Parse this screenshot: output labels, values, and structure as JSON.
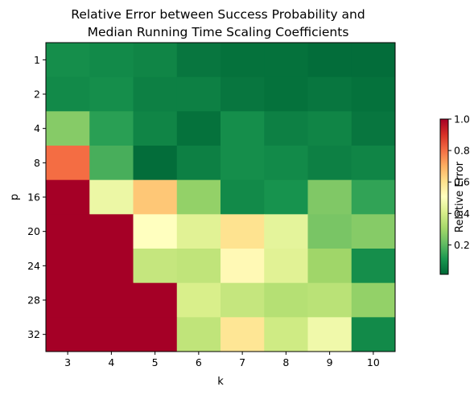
{
  "chart_data": {
    "type": "heatmap",
    "title_lines": [
      "Relative Error between Success Probability and",
      "Median Running Time Scaling Coefficients"
    ],
    "xlabel": "k",
    "ylabel": "p",
    "x": [
      "3",
      "4",
      "5",
      "6",
      "7",
      "8",
      "9",
      "10"
    ],
    "y": [
      "1",
      "2",
      "4",
      "8",
      "16",
      "20",
      "24",
      "28",
      "32"
    ],
    "values": [
      [
        0.08,
        0.07,
        0.06,
        0.03,
        0.02,
        0.02,
        0.01,
        0.01
      ],
      [
        0.07,
        0.08,
        0.05,
        0.05,
        0.03,
        0.02,
        0.03,
        0.02
      ],
      [
        0.25,
        0.12,
        0.06,
        0.02,
        0.08,
        0.05,
        0.06,
        0.03
      ],
      [
        0.8,
        0.16,
        0.01,
        0.05,
        0.08,
        0.07,
        0.05,
        0.06
      ],
      [
        1.0,
        0.45,
        0.65,
        0.27,
        0.07,
        0.09,
        0.24,
        0.13
      ],
      [
        1.0,
        1.0,
        0.5,
        0.42,
        0.59,
        0.43,
        0.23,
        0.25
      ],
      [
        1.0,
        1.0,
        0.36,
        0.35,
        0.52,
        0.42,
        0.29,
        0.08
      ],
      [
        1.0,
        1.0,
        1.0,
        0.4,
        0.36,
        0.33,
        0.34,
        0.27
      ],
      [
        1.0,
        1.0,
        1.0,
        0.35,
        0.58,
        0.38,
        0.46,
        0.07
      ]
    ],
    "colormap": "RdYlGn_r",
    "colorbar": {
      "label": "Relative Error",
      "range": [
        0.0,
        1.0
      ],
      "ticks": [
        "0.2",
        "0.4",
        "0.6",
        "0.8",
        "1.0"
      ],
      "tick_values": [
        0.2,
        0.4,
        0.6,
        0.8,
        1.0
      ]
    },
    "grid": false
  }
}
